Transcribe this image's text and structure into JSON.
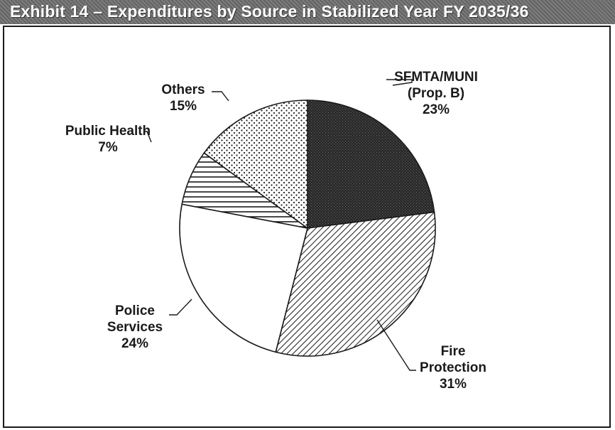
{
  "chart_data": {
    "type": "pie",
    "title": "Exhibit 14 – Expenditures by Source in Stabilized Year FY 2035/36",
    "start_angle_deg": 0,
    "direction": "clockwise",
    "slices": [
      {
        "label_lines": [
          "SFMTA/MUNI",
          "(Prop. B)"
        ],
        "value": 23,
        "value_label": "23%",
        "fill": "dense-dark"
      },
      {
        "label_lines": [
          "Fire",
          "Protection"
        ],
        "value": 31,
        "value_label": "31%",
        "fill": "diagonal-hatch"
      },
      {
        "label_lines": [
          "Police",
          "Services"
        ],
        "value": 24,
        "value_label": "24%",
        "fill": "white"
      },
      {
        "label_lines": [
          "Public Health"
        ],
        "value": 7,
        "value_label": "7%",
        "fill": "horizontal-stripes"
      },
      {
        "label_lines": [
          "Others"
        ],
        "value": 15,
        "value_label": "15%",
        "fill": "dots"
      }
    ]
  },
  "colors": {
    "ink": "#1a1a1a",
    "title_bar": "#6e6e6e",
    "title_text": "#ffffff",
    "dark_fill": "#2b2b2b"
  }
}
